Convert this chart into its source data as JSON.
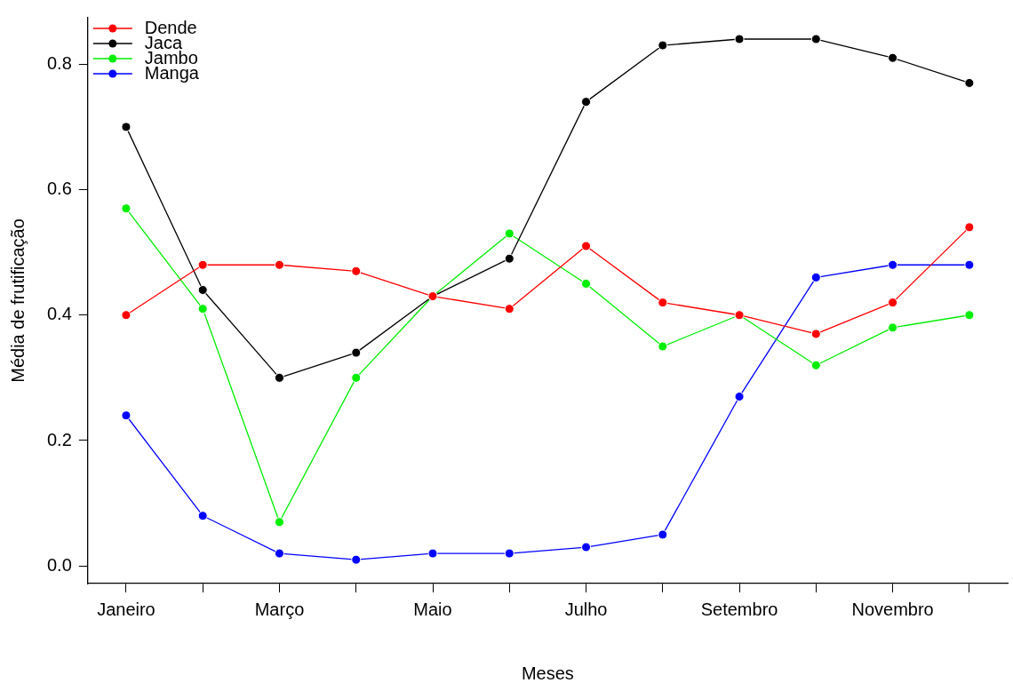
{
  "chart_data": {
    "type": "line",
    "xlabel": "Meses",
    "ylabel": "Média de frutificação",
    "categories": [
      "Janeiro",
      null,
      "Março",
      null,
      "Maio",
      null,
      "Julho",
      null,
      "Setembro",
      null,
      "Novembro",
      null
    ],
    "series": [
      {
        "name": "Dende",
        "color": "#ff0000",
        "values": [
          0.4,
          0.48,
          0.48,
          0.47,
          0.43,
          0.41,
          0.51,
          0.42,
          0.4,
          0.37,
          0.42,
          0.54
        ]
      },
      {
        "name": "Jaca",
        "color": "#000000",
        "values": [
          0.7,
          0.44,
          0.3,
          0.34,
          0.43,
          0.49,
          0.74,
          0.83,
          0.84,
          0.84,
          0.81,
          0.77
        ]
      },
      {
        "name": "Jambo",
        "color": "#00ee00",
        "values": [
          0.57,
          0.41,
          0.07,
          0.3,
          0.43,
          0.53,
          0.45,
          0.35,
          0.4,
          0.32,
          0.38,
          0.4
        ]
      },
      {
        "name": "Manga",
        "color": "#0000ff",
        "values": [
          0.24,
          0.08,
          0.02,
          0.01,
          0.02,
          0.02,
          0.03,
          0.05,
          0.27,
          0.46,
          0.48,
          0.48
        ]
      }
    ],
    "ylim": [
      -0.028,
      0.874
    ],
    "yticks": [
      {
        "value": 0,
        "label": "0.0"
      },
      {
        "value": 0.2,
        "label": "0.2"
      },
      {
        "value": 0.4,
        "label": "0.4"
      },
      {
        "value": 0.6,
        "label": "0.6"
      },
      {
        "value": 0.8,
        "label": "0.8"
      }
    ],
    "grid": false,
    "legend": "top left",
    "marker": "circle",
    "line_style": "solid"
  }
}
